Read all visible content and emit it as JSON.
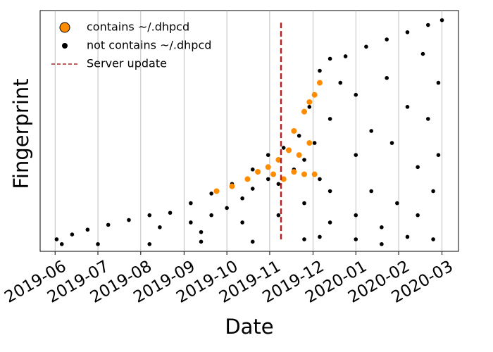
{
  "chart_data": {
    "type": "scatter",
    "xlabel": "Date",
    "ylabel": "Fingerprint",
    "xlim": [
      2019.388,
      2020.199
    ],
    "ylim": [
      0,
      100
    ],
    "xticks": [
      {
        "value": 2019.417,
        "label": "2019-06"
      },
      {
        "value": 2019.5,
        "label": "2019-07"
      },
      {
        "value": 2019.583,
        "label": "2019-08"
      },
      {
        "value": 2019.667,
        "label": "2019-09"
      },
      {
        "value": 2019.75,
        "label": "2019-10"
      },
      {
        "value": 2019.833,
        "label": "2019-11"
      },
      {
        "value": 2019.917,
        "label": "2019-12"
      },
      {
        "value": 2020.0,
        "label": "2020-01"
      },
      {
        "value": 2020.083,
        "label": "2020-02"
      },
      {
        "value": 2020.167,
        "label": "2020-03"
      }
    ],
    "xgrid": true,
    "legend": "upper left",
    "vline": {
      "x": 2019.855,
      "label": "Server update",
      "color": "#b22222"
    },
    "series": [
      {
        "name": "contains ~/.dhpcd",
        "color": "#ff8c00",
        "x": [
          2019.73,
          2019.76,
          2019.79,
          2019.81,
          2019.83,
          2019.85,
          2019.87,
          2019.88,
          2019.9,
          2019.91,
          2019.92,
          2019.93,
          2019.86,
          2019.88,
          2019.9,
          2019.92,
          2019.91,
          2019.89,
          2019.84
        ],
        "values": [
          25,
          27,
          30,
          33,
          35,
          38,
          42,
          50,
          58,
          62,
          65,
          70,
          30,
          33,
          32,
          32,
          45,
          40,
          32
        ]
      },
      {
        "name": "not contains ~/.dhpcd",
        "color": "#000000",
        "x": [
          2019.42,
          2019.45,
          2019.48,
          2019.52,
          2019.56,
          2019.6,
          2019.64,
          2019.68,
          2019.72,
          2019.76,
          2019.8,
          2019.83,
          2019.86,
          2019.89,
          2019.91,
          2019.93,
          2019.95,
          2019.98,
          2020.02,
          2020.06,
          2020.1,
          2020.14,
          2020.167,
          2019.43,
          2019.5,
          2019.6,
          2019.7,
          2019.8,
          2019.9,
          2019.93,
          2020.0,
          2020.05,
          2020.1,
          2020.15,
          2019.62,
          2019.68,
          2019.72,
          2019.75,
          2019.78,
          2019.8,
          2019.83,
          2019.85,
          2019.88,
          2019.9,
          2019.92,
          2019.93,
          2019.95,
          2019.95,
          2019.97,
          2020.0,
          2020.0,
          2020.03,
          2020.03,
          2020.06,
          2020.07,
          2020.08,
          2020.1,
          2020.12,
          2020.13,
          2020.14,
          2020.15,
          2020.16,
          2020.16,
          2019.7,
          2019.78,
          2019.85,
          2019.9,
          2019.95,
          2020.0,
          2020.05,
          2020.12
        ],
        "values": [
          5,
          7,
          9,
          11,
          13,
          15,
          16,
          20,
          24,
          28,
          34,
          40,
          43,
          48,
          60,
          75,
          80,
          81,
          85,
          88,
          91,
          94,
          96,
          3,
          3,
          3,
          4,
          4,
          5,
          6,
          5,
          3,
          6,
          5,
          10,
          12,
          15,
          18,
          22,
          26,
          30,
          28,
          34,
          38,
          45,
          30,
          55,
          25,
          70,
          65,
          40,
          50,
          25,
          72,
          45,
          20,
          60,
          35,
          82,
          55,
          25,
          40,
          70,
          8,
          12,
          15,
          20,
          12,
          15,
          10,
          15
        ]
      }
    ]
  }
}
